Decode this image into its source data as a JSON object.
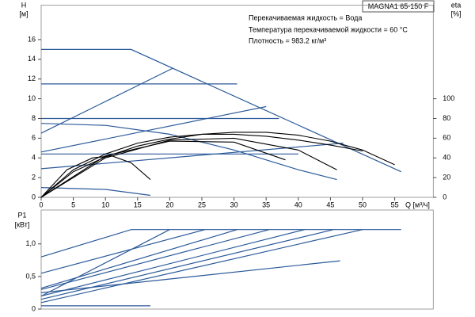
{
  "chart_data": [
    {
      "type": "line",
      "title": "MAGNA1 65-150 F",
      "annotations": [
        "Перекачиваемая жидкость = Вода",
        "Температура перекачиваемой жидкости = 60 °C",
        "Плотность = 983.2 кг/м³"
      ],
      "y_label": "H",
      "y_unit": "[м]",
      "y2_label": "eta",
      "y2_unit": "[%]",
      "x_label": "Q [м³/ч]",
      "xlim": [
        0,
        61
      ],
      "xticks": [
        0,
        5,
        10,
        15,
        20,
        25,
        30,
        35,
        40,
        45,
        50,
        55
      ],
      "ylim": [
        0,
        19.5
      ],
      "yticks": [
        0,
        2,
        4,
        6,
        8,
        10,
        12,
        14,
        16
      ],
      "y2lim": [
        0,
        195
      ],
      "y2ticks": [
        0,
        20,
        40,
        60,
        80,
        100
      ],
      "series": [
        {
          "color": "#2b5a9a",
          "x": [
            0,
            14,
            56
          ],
          "values": [
            15,
            15,
            2.6
          ]
        },
        {
          "color": "#2b5a9a",
          "x": [
            0,
            30.5
          ],
          "values": [
            11.5,
            11.5
          ]
        },
        {
          "color": "#2b5a9a",
          "x": [
            0,
            20.5
          ],
          "values": [
            6.5,
            13.1
          ]
        },
        {
          "color": "#2b5a9a",
          "x": [
            0,
            37
          ],
          "values": [
            8,
            8
          ]
        },
        {
          "color": "#2b5a9a",
          "x": [
            0,
            35
          ],
          "values": [
            4.6,
            9.2
          ]
        },
        {
          "color": "#2b5a9a",
          "x": [
            0,
            10,
            20,
            30,
            40,
            46
          ],
          "values": [
            7.5,
            7.3,
            6.4,
            4.8,
            2.8,
            1.8
          ]
        },
        {
          "color": "#2b5a9a",
          "x": [
            0,
            47
          ],
          "values": [
            2.9,
            5.5
          ]
        },
        {
          "color": "#2b5a9a",
          "x": [
            0,
            40
          ],
          "values": [
            4.4,
            4.4
          ]
        },
        {
          "color": "#2b5a9a",
          "x": [
            0,
            10,
            17
          ],
          "values": [
            1,
            0.8,
            0.2
          ]
        },
        {
          "color": "#000000",
          "axis": "y2",
          "x": [
            0,
            5,
            10,
            15,
            20,
            25,
            30,
            35,
            40,
            45,
            50,
            55
          ],
          "values": [
            0,
            26,
            41,
            52,
            59,
            64,
            66,
            66,
            63,
            57,
            48,
            33
          ]
        },
        {
          "color": "#000000",
          "axis": "y2",
          "x": [
            0,
            5,
            10,
            15,
            20,
            25,
            30,
            35,
            40,
            45,
            50
          ],
          "values": [
            0,
            28,
            44,
            55,
            61,
            64,
            64,
            62,
            58,
            53,
            47
          ]
        },
        {
          "color": "#000000",
          "axis": "y2",
          "x": [
            0,
            10,
            20,
            30,
            40,
            46
          ],
          "values": [
            0,
            40,
            58,
            60,
            48,
            28
          ]
        },
        {
          "color": "#000000",
          "axis": "y2",
          "x": [
            0,
            10,
            20,
            30,
            38
          ],
          "values": [
            0,
            42,
            57,
            56,
            38
          ]
        },
        {
          "color": "#000000",
          "axis": "y2",
          "x": [
            0,
            4,
            8,
            11,
            14,
            17
          ],
          "values": [
            0,
            28,
            40,
            42,
            35,
            18
          ]
        }
      ]
    },
    {
      "type": "line",
      "y_label": "P1",
      "y_unit": "[кВт]",
      "xlim": [
        0,
        61
      ],
      "ylim": [
        0,
        1.52
      ],
      "yticks": [
        0,
        {
          "value": 0.5,
          "label": "0,5"
        },
        {
          "value": 1.0,
          "label": "1,0"
        }
      ],
      "series": [
        {
          "color": "#2b5a9a",
          "x": [
            0,
            14,
            56
          ],
          "values": [
            0.8,
            1.22,
            1.22
          ]
        },
        {
          "color": "#2b5a9a",
          "x": [
            0,
            20
          ],
          "values": [
            0.2,
            1.22
          ]
        },
        {
          "color": "#2b5a9a",
          "x": [
            0,
            25.5
          ],
          "values": [
            0.55,
            1.22
          ]
        },
        {
          "color": "#2b5a9a",
          "x": [
            0,
            30.5
          ],
          "values": [
            0.32,
            1.22
          ]
        },
        {
          "color": "#2b5a9a",
          "x": [
            0,
            35.5
          ],
          "values": [
            0.3,
            1.22
          ]
        },
        {
          "color": "#2b5a9a",
          "x": [
            0,
            41
          ],
          "values": [
            0.2,
            1.22
          ]
        },
        {
          "color": "#2b5a9a",
          "x": [
            0,
            45.5
          ],
          "values": [
            0.15,
            1.22
          ]
        },
        {
          "color": "#2b5a9a",
          "x": [
            0,
            50
          ],
          "values": [
            0.1,
            1.22
          ]
        },
        {
          "color": "#2b5a9a",
          "x": [
            0,
            46.5
          ],
          "values": [
            0.25,
            0.74
          ]
        },
        {
          "color": "#2b5a9a",
          "x": [
            0,
            17
          ],
          "values": [
            0.05,
            0.05
          ]
        }
      ]
    }
  ]
}
